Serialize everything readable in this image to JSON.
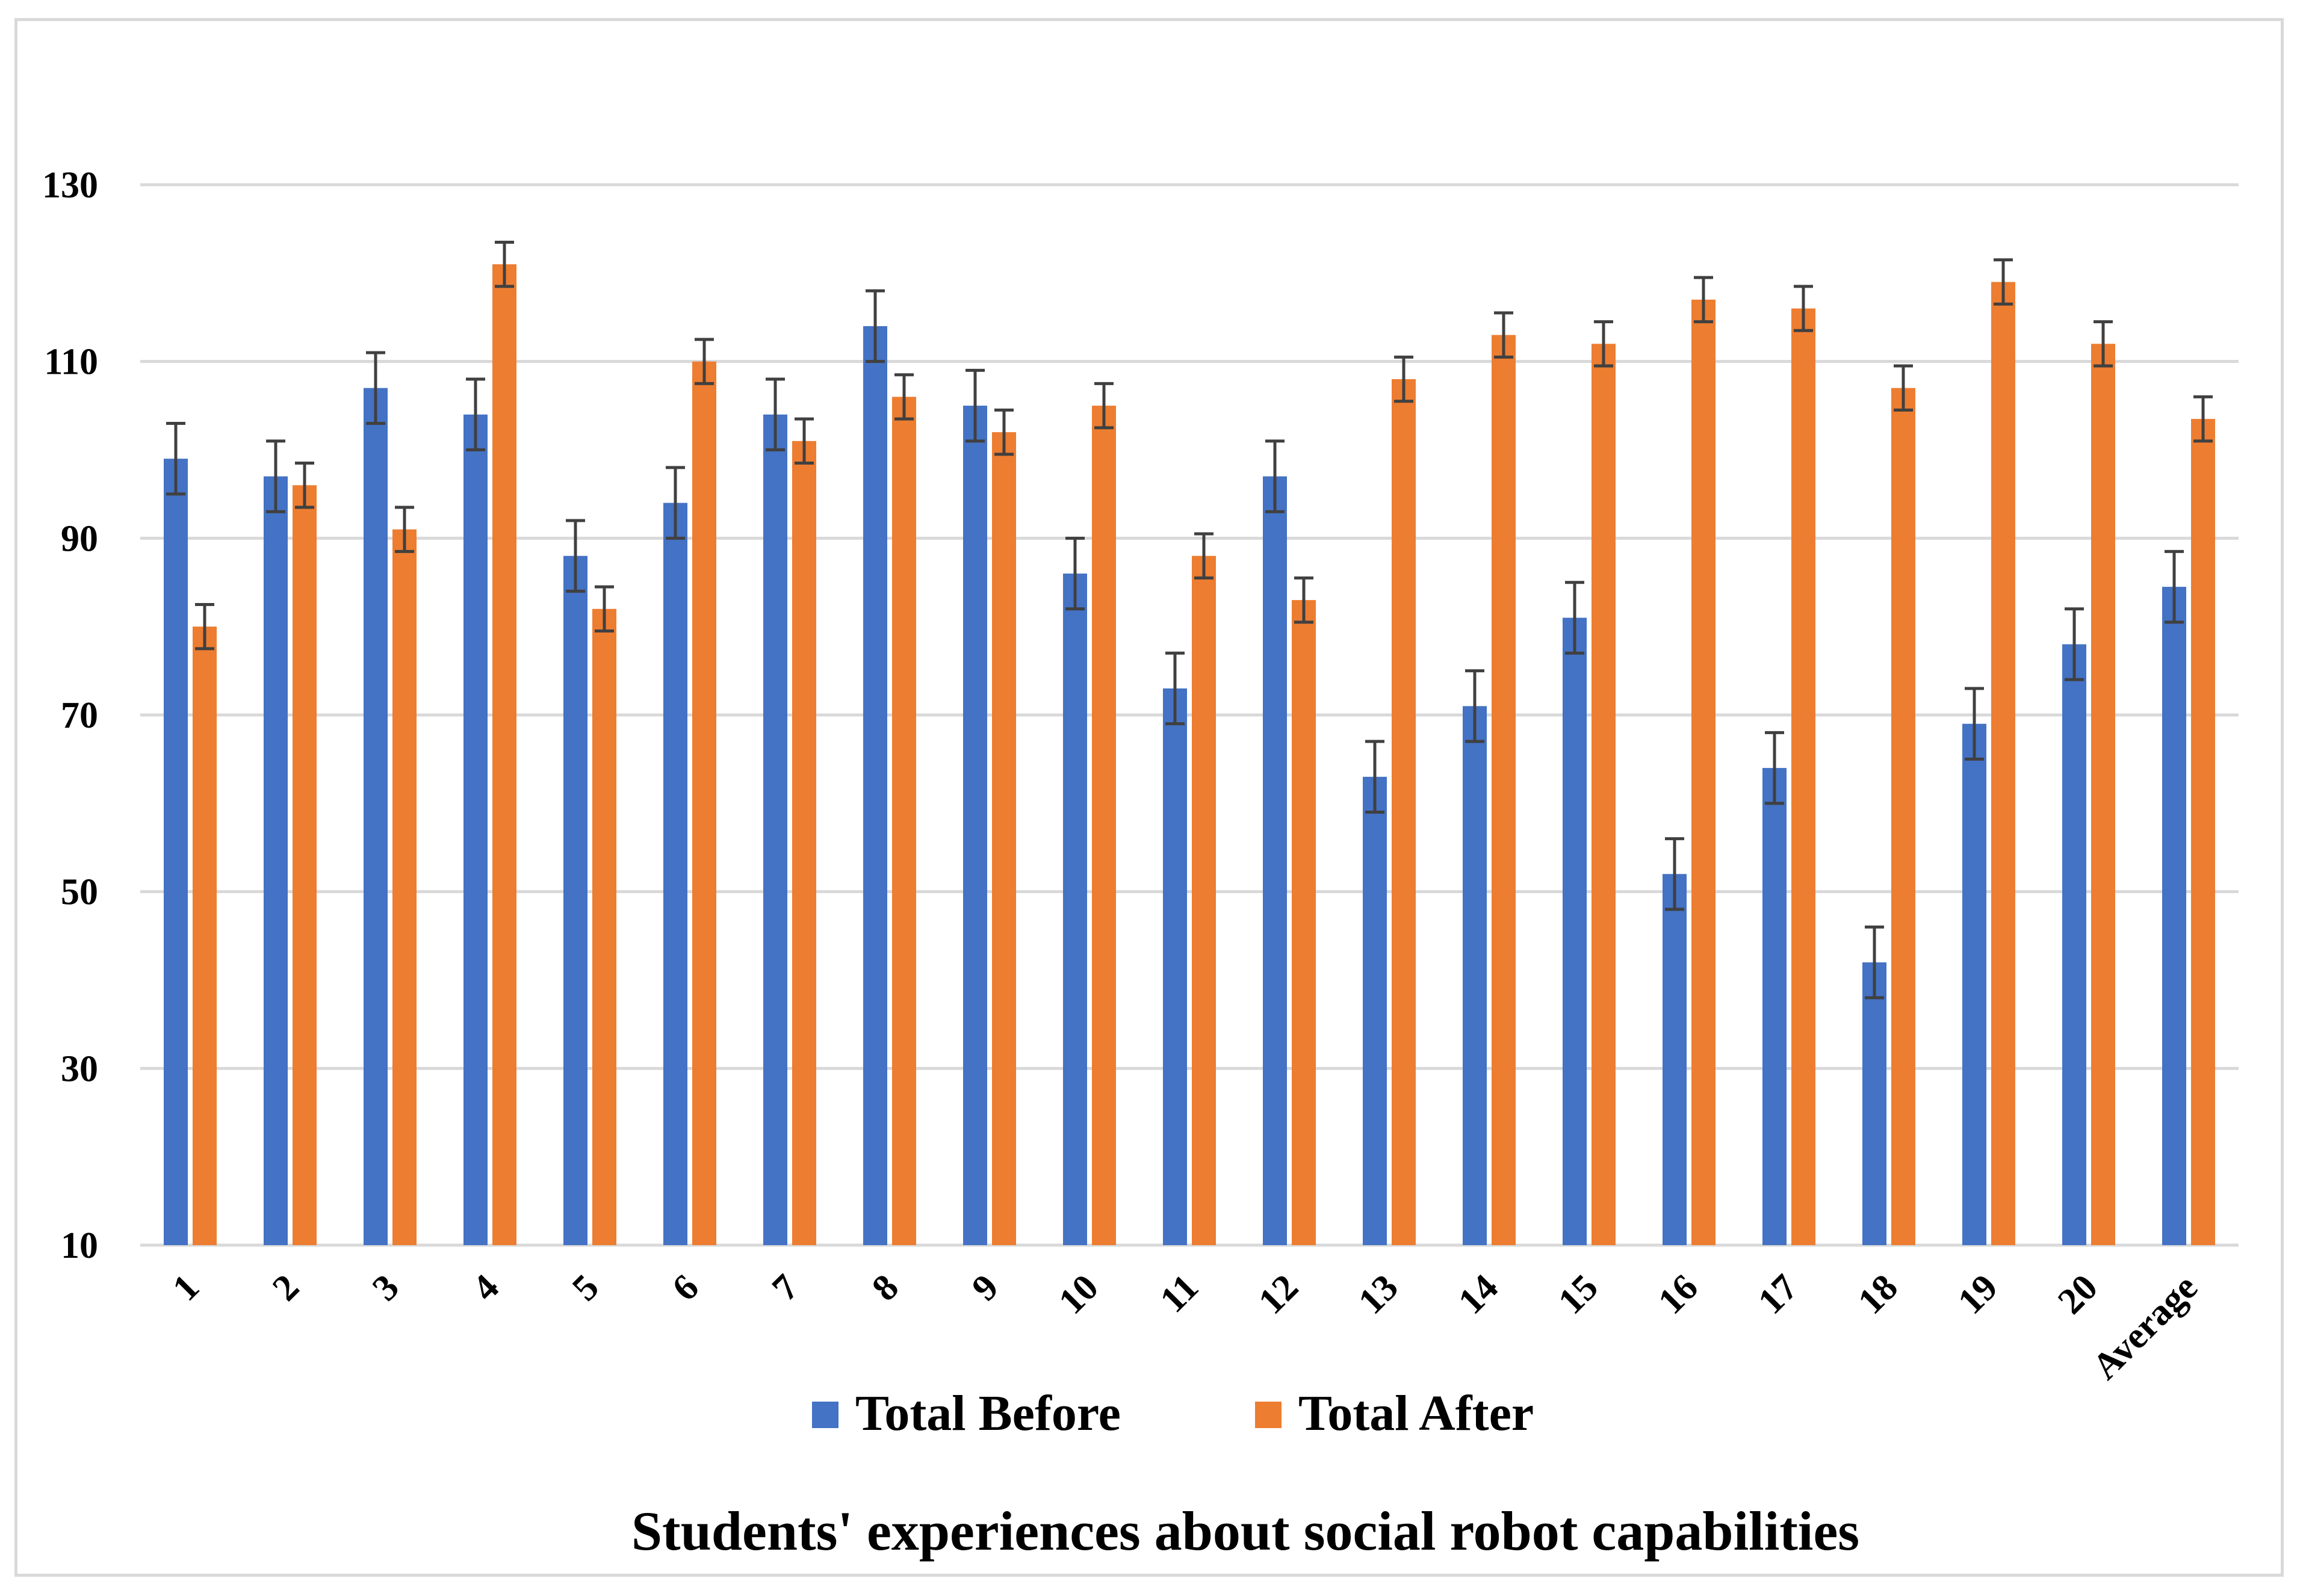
{
  "chart_data": {
    "type": "bar",
    "title": "",
    "xlabel": "Students' experiences about social robot capabilities",
    "ylabel": "",
    "categories": [
      "1",
      "2",
      "3",
      "4",
      "5",
      "6",
      "7",
      "8",
      "9",
      "10",
      "11",
      "12",
      "13",
      "14",
      "15",
      "16",
      "17",
      "18",
      "19",
      "20",
      "Average"
    ],
    "series": [
      {
        "name": "Total Before",
        "color": "#4472C4",
        "values": [
          99,
          97,
          107,
          104,
          88,
          94,
          104,
          114,
          105,
          86,
          73,
          97,
          63,
          71,
          81,
          52,
          64,
          42,
          69,
          78,
          84.5
        ],
        "error": 4
      },
      {
        "name": "Total After",
        "color": "#ED7D31",
        "values": [
          80,
          96,
          91,
          121,
          82,
          110,
          101,
          106,
          102,
          105,
          88,
          83,
          108,
          113,
          112,
          117,
          116,
          107,
          119,
          112,
          103.5
        ],
        "error": 2.5
      }
    ],
    "ylim": [
      10,
      130
    ],
    "yticks": [
      10,
      30,
      50,
      70,
      90,
      110,
      130
    ],
    "grid": true,
    "legend_position": "bottom",
    "error_bar_color": "#404040",
    "grid_color": "#d9d9d9"
  }
}
